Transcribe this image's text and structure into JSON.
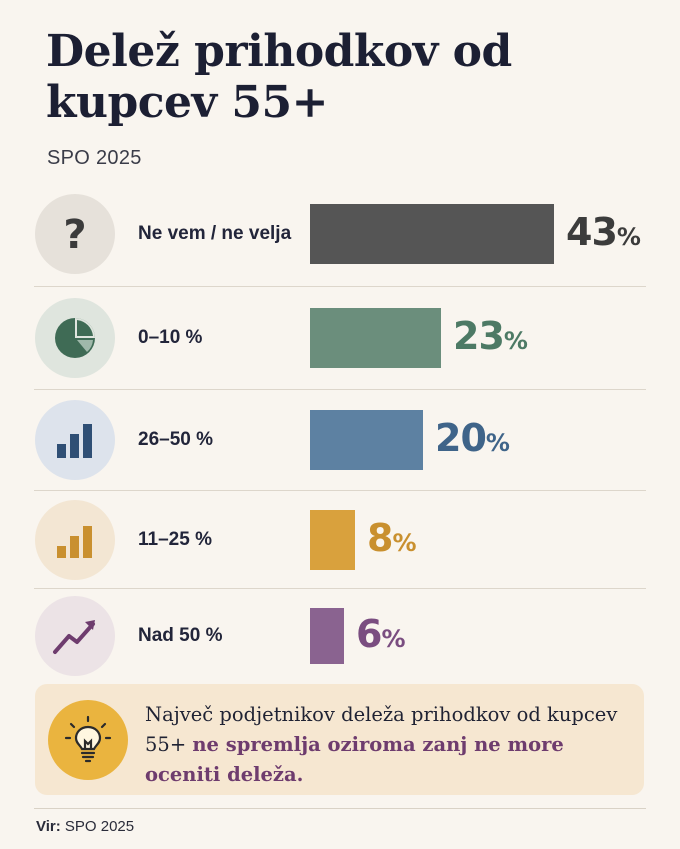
{
  "title": "Delež prihodkov od kupcev 55+",
  "subtitle": "SPO 2025",
  "chart_data": {
    "type": "bar",
    "orientation": "horizontal",
    "categories": [
      "Ne vem / ne velja",
      "0–10 %",
      "26–50 %",
      "11–25 %",
      "Nad 50 %"
    ],
    "values": [
      43,
      23,
      20,
      8,
      6
    ],
    "value_labels": [
      "43",
      "23",
      "20",
      "8",
      "6"
    ],
    "unit": "%",
    "colors": [
      "#555555",
      "#6b8e7c",
      "#5d81a2",
      "#d9a13d",
      "#8a6390"
    ],
    "icons": [
      "question-mark-icon",
      "pie-chart-icon",
      "bar-chart-icon",
      "bar-chart-small-icon",
      "trend-up-icon"
    ],
    "icon_bg": [
      "#e6e1da",
      "#dfe5de",
      "#dde3ec",
      "#f3e6d3",
      "#ece3e6"
    ],
    "xlim": [
      0,
      43
    ]
  },
  "callout": {
    "icon": "lightbulb-icon",
    "text_plain": "Največ podjetnikov deleža prihodkov od kupcev 55+",
    "text_highlight": "ne spremlja oziroma zanj ne more oceniti deleža."
  },
  "footer": {
    "label": "Vir:",
    "text": "SPO 2025"
  }
}
